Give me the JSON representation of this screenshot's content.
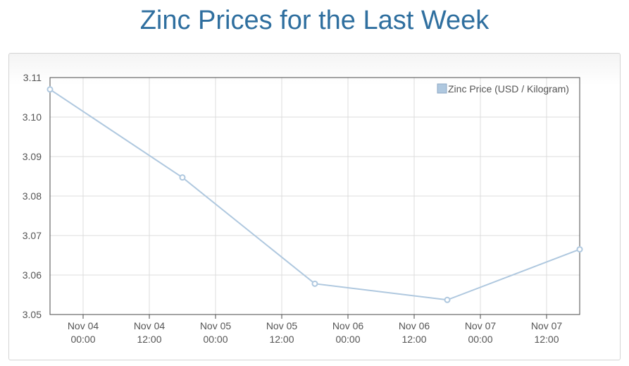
{
  "page": {
    "title": "Zinc Prices for the Last Week"
  },
  "chart_data": {
    "type": "line",
    "title": "Zinc Prices for the Last Week",
    "xlabel": "",
    "ylabel": "",
    "ylim": [
      3.05,
      3.11
    ],
    "yticks": [
      "3.05",
      "3.06",
      "3.07",
      "3.08",
      "3.09",
      "3.10",
      "3.11"
    ],
    "xlim": [
      "Nov 03 18:00",
      "Nov 07 18:00"
    ],
    "xticks": [
      {
        "line1": "Nov 04",
        "line2": "00:00",
        "t": "Nov 04 00:00"
      },
      {
        "line1": "Nov 04",
        "line2": "12:00",
        "t": "Nov 04 12:00"
      },
      {
        "line1": "Nov 05",
        "line2": "00:00",
        "t": "Nov 05 00:00"
      },
      {
        "line1": "Nov 05",
        "line2": "12:00",
        "t": "Nov 05 12:00"
      },
      {
        "line1": "Nov 06",
        "line2": "00:00",
        "t": "Nov 06 00:00"
      },
      {
        "line1": "Nov 06",
        "line2": "12:00",
        "t": "Nov 06 12:00"
      },
      {
        "line1": "Nov 07",
        "line2": "00:00",
        "t": "Nov 07 00:00"
      },
      {
        "line1": "Nov 07",
        "line2": "12:00",
        "t": "Nov 07 12:00"
      }
    ],
    "grid": true,
    "legend_position": "top-right",
    "series": [
      {
        "name": "Zinc Price (USD / Kilogram)",
        "color": "#afc8df",
        "points": [
          {
            "x": "Nov 03 18:00",
            "y": 3.107
          },
          {
            "x": "Nov 04 18:00",
            "y": 3.0847
          },
          {
            "x": "Nov 05 18:00",
            "y": 3.0578
          },
          {
            "x": "Nov 06 18:00",
            "y": 3.0537
          },
          {
            "x": "Nov 07 18:00",
            "y": 3.0665
          }
        ]
      }
    ]
  }
}
